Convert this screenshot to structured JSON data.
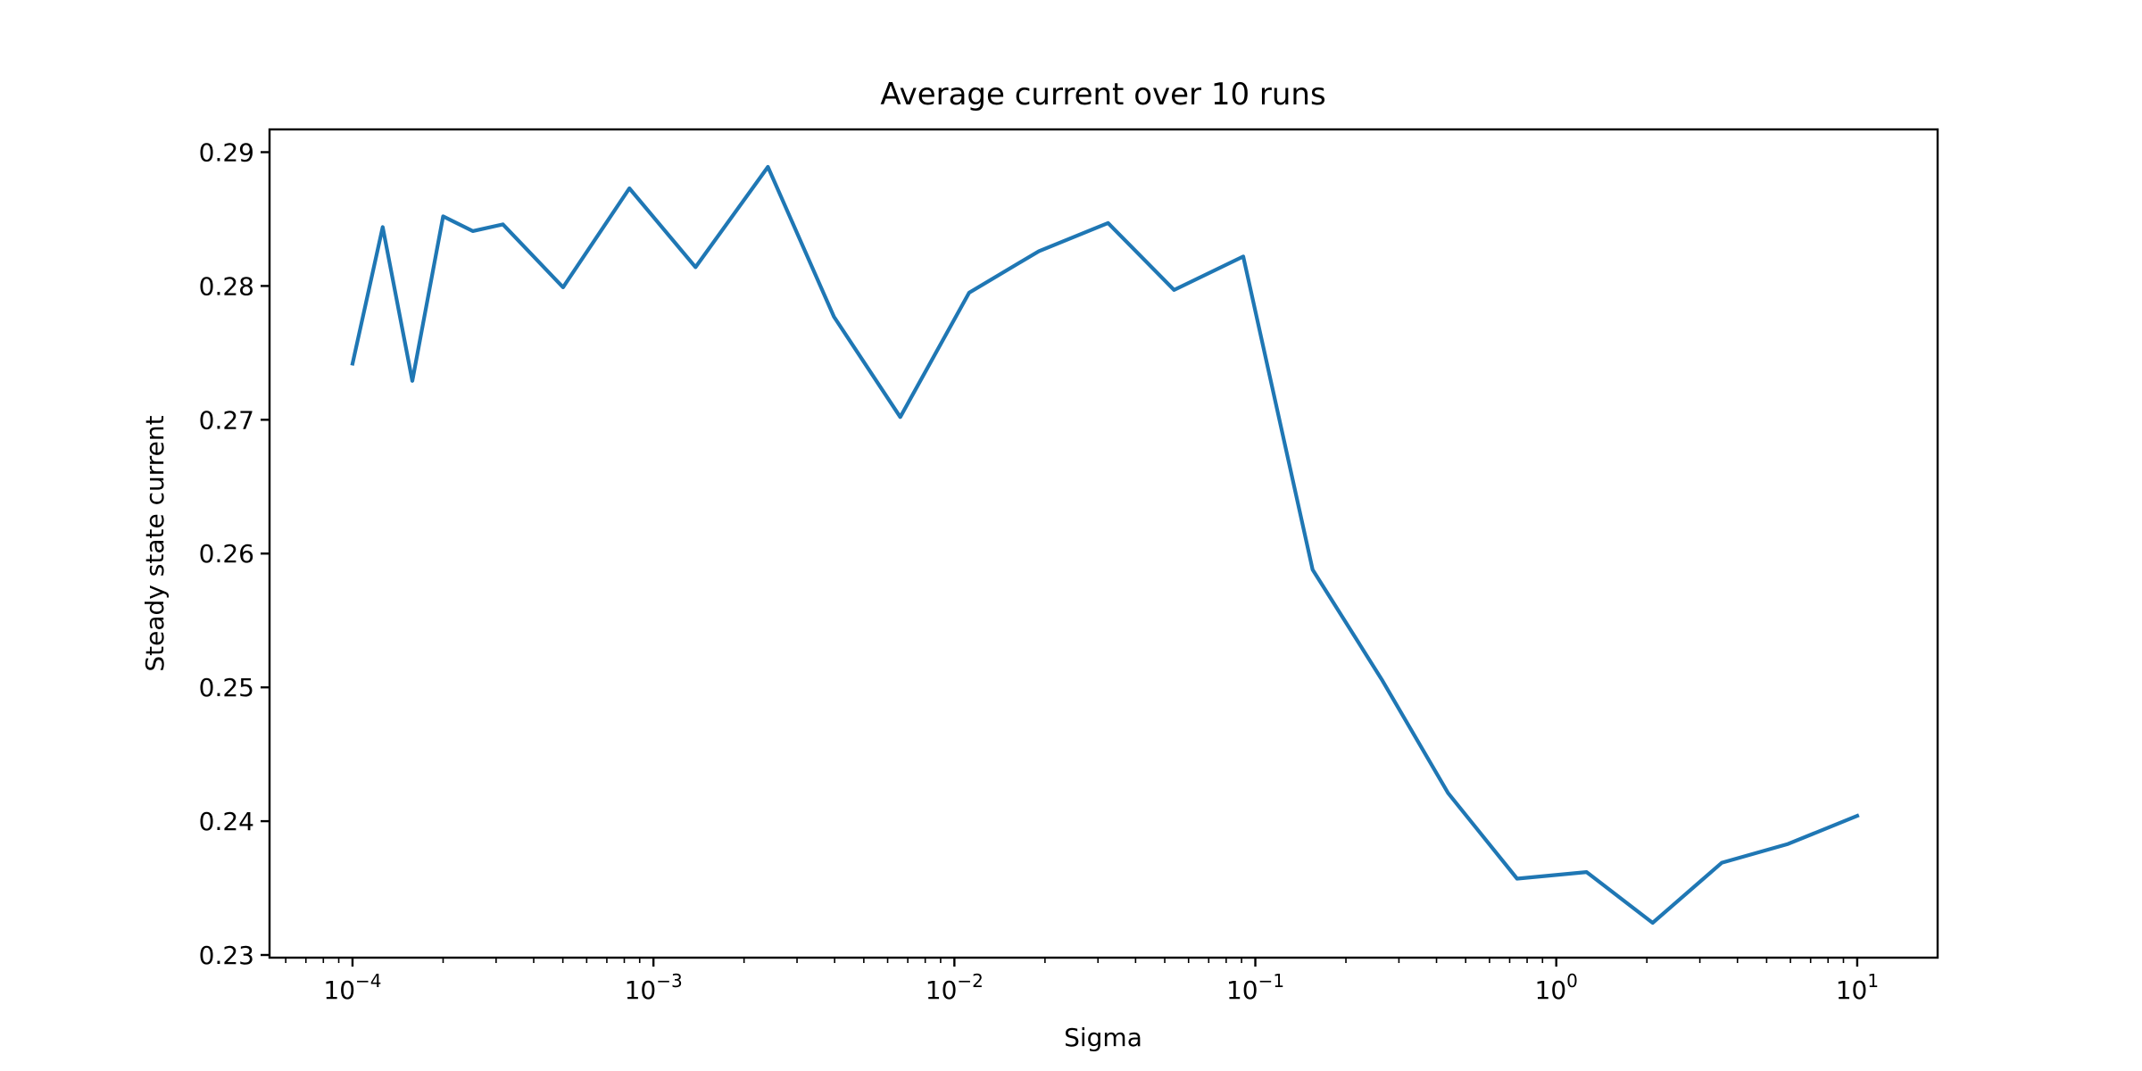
{
  "chart_data": {
    "type": "line",
    "title": "Average current over 10 runs",
    "xlabel": "Sigma",
    "ylabel": "Steady state current",
    "xscale": "log",
    "grid": false,
    "legend": "none",
    "xlim": [
      5.3e-05,
      18.5
    ],
    "ylim": [
      0.2298,
      0.2917
    ],
    "yticks": [
      {
        "value": 0.23,
        "label": "0.23"
      },
      {
        "value": 0.24,
        "label": "0.24"
      },
      {
        "value": 0.25,
        "label": "0.25"
      },
      {
        "value": 0.26,
        "label": "0.26"
      },
      {
        "value": 0.27,
        "label": "0.27"
      },
      {
        "value": 0.28,
        "label": "0.28"
      },
      {
        "value": 0.29,
        "label": "0.29"
      }
    ],
    "xticks": [
      {
        "value": 0.0001,
        "base": "10",
        "exp": "−4"
      },
      {
        "value": 0.001,
        "base": "10",
        "exp": "−3"
      },
      {
        "value": 0.01,
        "base": "10",
        "exp": "−2"
      },
      {
        "value": 0.1,
        "base": "10",
        "exp": "−1"
      },
      {
        "value": 1,
        "base": "10",
        "exp": "0"
      },
      {
        "value": 10,
        "base": "10",
        "exp": "1"
      }
    ],
    "series": [
      {
        "color": "#1f77b4",
        "points": [
          {
            "x": 0.0001,
            "y": 0.2742
          },
          {
            "x": 0.000126,
            "y": 0.2844
          },
          {
            "x": 0.000158,
            "y": 0.2729
          },
          {
            "x": 0.0002,
            "y": 0.2852
          },
          {
            "x": 0.000251,
            "y": 0.2841
          },
          {
            "x": 0.000316,
            "y": 0.2846
          },
          {
            "x": 0.000501,
            "y": 0.2799
          },
          {
            "x": 0.000832,
            "y": 0.2873
          },
          {
            "x": 0.00138,
            "y": 0.2814
          },
          {
            "x": 0.0024,
            "y": 0.2889
          },
          {
            "x": 0.00398,
            "y": 0.2777
          },
          {
            "x": 0.00661,
            "y": 0.2702
          },
          {
            "x": 0.0112,
            "y": 0.2795
          },
          {
            "x": 0.0191,
            "y": 0.2826
          },
          {
            "x": 0.0324,
            "y": 0.2847
          },
          {
            "x": 0.0537,
            "y": 0.2797
          },
          {
            "x": 0.0912,
            "y": 0.2822
          },
          {
            "x": 0.155,
            "y": 0.2588
          },
          {
            "x": 0.263,
            "y": 0.2506
          },
          {
            "x": 0.437,
            "y": 0.2421
          },
          {
            "x": 0.741,
            "y": 0.2357
          },
          {
            "x": 1.26,
            "y": 0.2362
          },
          {
            "x": 2.09,
            "y": 0.2324
          },
          {
            "x": 3.55,
            "y": 0.2369
          },
          {
            "x": 5.89,
            "y": 0.2383
          },
          {
            "x": 10.0,
            "y": 0.2404
          }
        ]
      }
    ]
  }
}
